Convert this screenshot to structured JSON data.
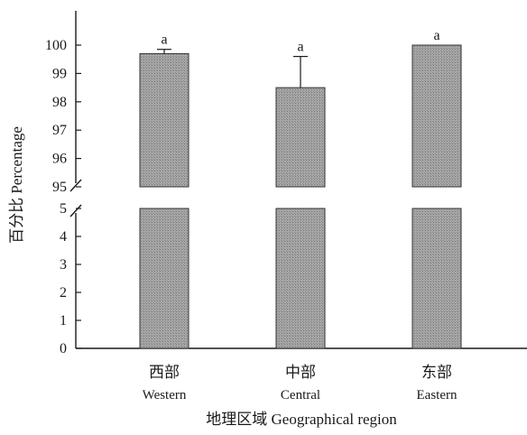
{
  "chart_data": {
    "type": "bar",
    "categories": [
      {
        "cn": "西部",
        "en": "Western"
      },
      {
        "cn": "中部",
        "en": "Central"
      },
      {
        "cn": "东部",
        "en": "Eastern"
      }
    ],
    "values": [
      99.7,
      98.5,
      100.0
    ],
    "error_upper": [
      99.85,
      99.6,
      100.0
    ],
    "significance": [
      "a",
      "a",
      "a"
    ],
    "xlabel": "地理区域 Geographical region",
    "ylabel": "百分比 Percentage",
    "y_axis_break": {
      "lower_range": [
        0,
        5
      ],
      "upper_range": [
        95,
        100
      ]
    },
    "y_ticks_lower": [
      0,
      1,
      2,
      3,
      4,
      5
    ],
    "y_ticks_upper": [
      95,
      96,
      97,
      98,
      99,
      100
    ],
    "bar_color": "#9e9e9e",
    "bar_edge_color": "#333333"
  }
}
